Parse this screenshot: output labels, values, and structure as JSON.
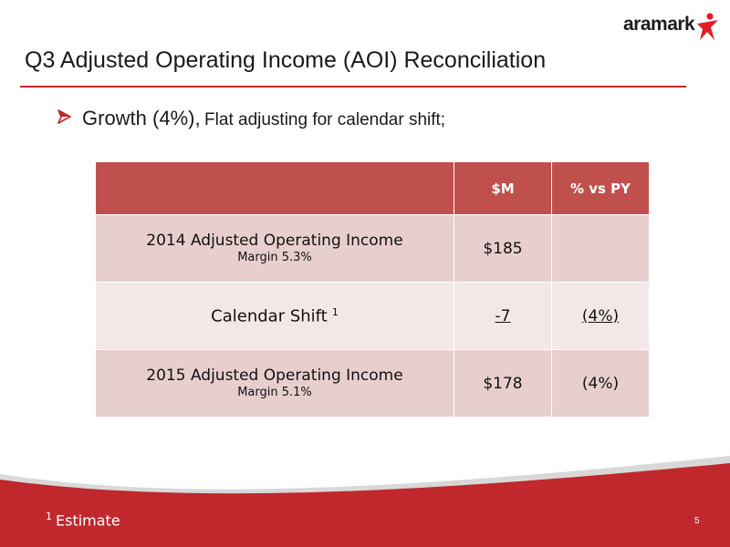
{
  "logo": {
    "text": "aramark"
  },
  "slide": {
    "title": "Q3 Adjusted Operating Income (AOI) Reconciliation",
    "bullet": {
      "main": "Growth (4%),",
      "sub": "Flat adjusting for calendar shift;"
    }
  },
  "table": {
    "headers": [
      "",
      "$M",
      "% vs PY"
    ],
    "rows": [
      {
        "label": "2014 Adjusted Operating Income",
        "margin": "Margin 5.3%",
        "value": "$185",
        "pct": ""
      },
      {
        "label": "Calendar Shift",
        "label_sup": "1",
        "margin": "",
        "value": "-7",
        "pct": "(4%)"
      },
      {
        "label": "2015 Adjusted Operating Income",
        "margin": "Margin 5.1%",
        "value": "$178",
        "pct": "(4%)"
      }
    ]
  },
  "footer": {
    "footnote_sup": "1",
    "footnote": "Estimate",
    "page_number": "5"
  },
  "colors": {
    "brand_red": "#c0282d",
    "header_fill": "#c0504d",
    "row_dark": "#e7cfce",
    "row_light": "#f3e7e7"
  }
}
